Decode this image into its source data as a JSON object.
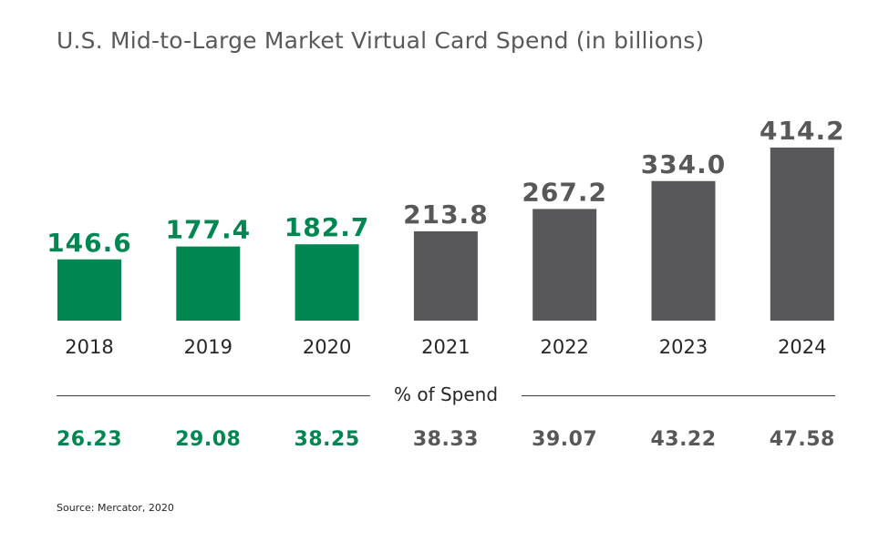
{
  "title": "U.S. Mid-to-Large Market Virtual Card Spend (in billions)",
  "colors": {
    "actual": "#008751",
    "forecast": "#58585a",
    "year_label": "#262626"
  },
  "chart_data": {
    "type": "bar",
    "title": "U.S. Mid-to-Large Market Virtual Card Spend (in billions)",
    "categories": [
      "2018",
      "2019",
      "2020",
      "2021",
      "2022",
      "2023",
      "2024"
    ],
    "values": [
      146.6,
      177.4,
      182.7,
      213.8,
      267.2,
      334.0,
      414.2
    ],
    "value_labels": [
      "146.6",
      "177.4",
      "182.7",
      "213.8",
      "267.2",
      "334.0",
      "414.2"
    ],
    "highlighted_count": 3,
    "ylim": [
      0,
      414.2
    ],
    "grid": false,
    "xlabel": "",
    "ylabel": ""
  },
  "percent_of_spend": {
    "label": "% of Spend",
    "values": [
      "26.23",
      "29.08",
      "38.25",
      "38.33",
      "39.07",
      "43.22",
      "47.58"
    ]
  },
  "source": "Source: Mercator, 2020"
}
